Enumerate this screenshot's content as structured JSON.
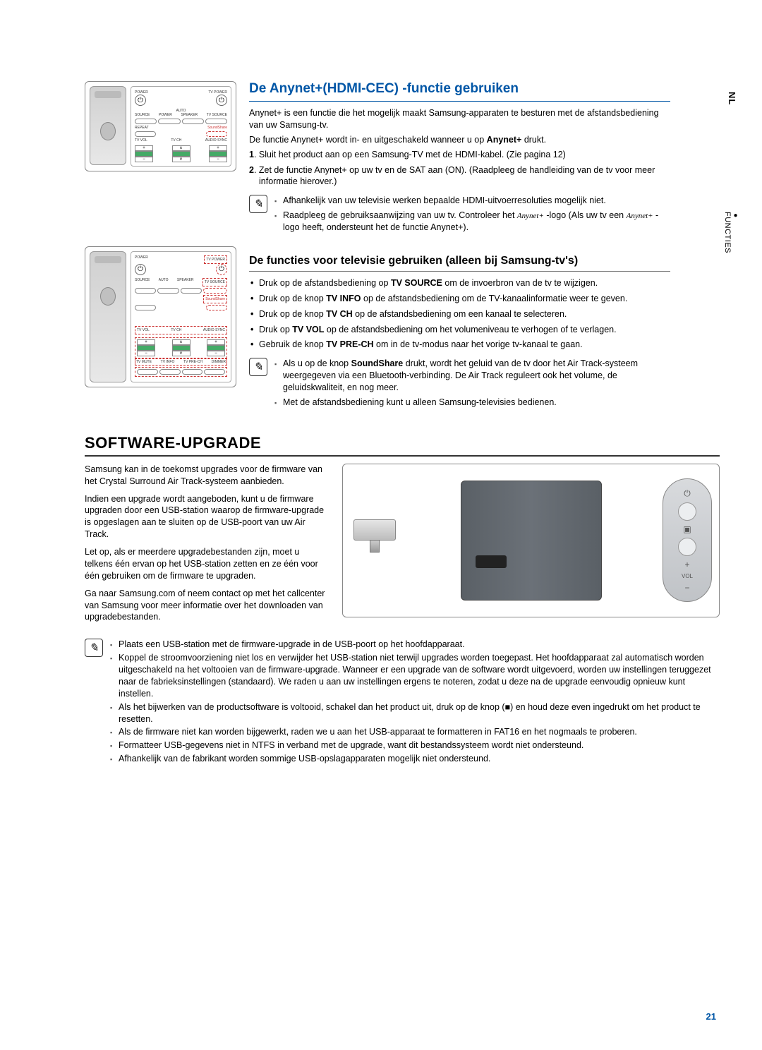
{
  "sideTab1": "NL",
  "sideTab2": "FUNCTIES",
  "pageNum": "21",
  "remote": {
    "power": "POWER",
    "tvpower": "TV POWER",
    "auto": "AUTO",
    "autopower": "POWER",
    "source": "SOURCE",
    "speaker": "SPEAKER",
    "tvsource": "TV SOURCE",
    "repeat": "REPEAT",
    "soundshare": "SoundShare",
    "tvvol": "TV VOL",
    "tvch": "TV CH",
    "audiosync": "AUDIO SYNC",
    "tvmute": "TV MUTE",
    "tvinfo": "TV INFO",
    "tvprech": "TV PRE-CH",
    "dimmer": "DIMMER"
  },
  "anynet": {
    "title": "De Anynet+(HDMI-CEC) -functie gebruiken",
    "p1": "Anynet+ is een functie die het mogelijk maakt Samsung-apparaten te besturen met de afstandsbediening van uw Samsung-tv.",
    "p2a": "De functie Anynet+ wordt in- en uitgeschakeld wanneer u op ",
    "p2b": "Anynet+",
    "p2c": " drukt.",
    "step1n": "1",
    "step1": ". Sluit het product aan op een Samsung-TV met de HDMI-kabel. (Zie pagina 12)",
    "step2n": "2",
    "step2": ". Zet de functie Anynet+ op uw tv en de SAT aan (ON). (Raadpleeg de handleiding van de tv voor meer informatie hierover.)",
    "note1": "Afhankelijk van uw televisie werken bepaalde HDMI-uitvoerresoluties mogelijk niet.",
    "note2a": "Raadpleeg de gebruiksaanwijzing van uw tv. Controleer het ",
    "note2b": " -logo (Als uw tv een ",
    "note2c": " -logo heeft, ondersteunt het de functie Anynet+).",
    "anynetLogo": "Anynet+"
  },
  "tvfunc": {
    "title": "De functies voor televisie gebruiken (alleen bij Samsung-tv's)",
    "b1a": "Druk op de afstandsbediening op ",
    "b1b": "TV SOURCE",
    "b1c": " om de invoerbron van de tv te wijzigen.",
    "b2a": "Druk op de knop ",
    "b2b": "TV INFO",
    "b2c": " op de afstandsbediening om de TV-kanaalinformatie weer te geven.",
    "b3a": "Druk op de knop ",
    "b3b": "TV CH",
    "b3c": " op de afstandsbediening om een kanaal te selecteren.",
    "b4a": "Druk op ",
    "b4b": "TV VOL",
    "b4c": " op de afstandsbediening om het volumeniveau te verhogen of te verlagen.",
    "b5a": "Gebruik de knop ",
    "b5b": "TV PRE-CH",
    "b5c": " om in de tv-modus naar het vorige tv-kanaal te gaan.",
    "note1a": "Als u op de knop ",
    "note1b": "SoundShare",
    "note1c": " drukt, wordt het geluid van de tv door het Air Track-systeem weergegeven via een Bluetooth-verbinding. De Air Track reguleert ook het volume, de geluidskwaliteit, en nog meer.",
    "note2": "Met de afstandsbediening kunt u alleen Samsung-televisies bedienen."
  },
  "upgrade": {
    "title": "SOFTWARE-UPGRADE",
    "p1": "Samsung kan in de toekomst upgrades voor de firmware van het Crystal Surround Air Track-systeem aanbieden.",
    "p2": "Indien een upgrade wordt aangeboden, kunt u de firmware upgraden door een USB-station waarop de firmware-upgrade is opgeslagen aan te sluiten op de USB-poort van uw Air Track.",
    "p3": "Let op, als er meerdere upgradebestanden zijn, moet u telkens één ervan op het USB-station zetten en ze één voor één gebruiken om de firmware te upgraden.",
    "p4": "Ga naar Samsung.com of neem contact op met het callcenter van Samsung voor meer informatie over het downloaden van upgradebestanden.",
    "btnVol": "VOL"
  },
  "bottomNotes": {
    "n1": "Plaats een USB-station met de firmware-upgrade in de USB-poort op het hoofdapparaat.",
    "n2": "Koppel de stroomvoorziening niet los en verwijder het USB-station niet terwijl upgrades worden toegepast. Het hoofdapparaat zal automatisch worden uitgeschakeld na het voltooien van de firmware-upgrade. Wanneer er een upgrade van de software wordt uitgevoerd, worden uw instellingen teruggezet naar de fabrieksinstellingen (standaard). We raden u aan uw instellingen ergens te noteren, zodat u deze na de upgrade eenvoudig opnieuw kunt instellen.",
    "n3": "Als het bijwerken van de productsoftware is voltooid, schakel dan het product uit, druk op de knop (■) en houd deze even ingedrukt om het product te resetten.",
    "n4": "Als de firmware niet kan worden bijgewerkt, raden we u aan het USB-apparaat te formatteren in FAT16 en het nogmaals te proberen.",
    "n5": "Formatteer USB-gegevens niet in NTFS in verband met de upgrade, want dit bestandssysteem wordt niet ondersteund.",
    "n6": "Afhankelijk van de fabrikant worden sommige USB-opslagapparaten mogelijk niet ondersteund."
  }
}
